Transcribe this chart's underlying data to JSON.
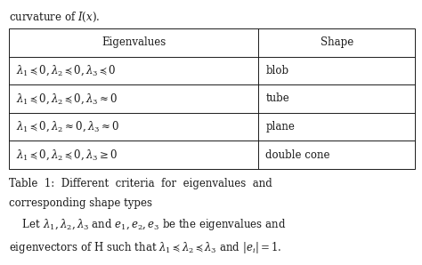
{
  "title_above": "curvature of $I(x)$.",
  "col_headers": [
    "Eigenvalues",
    "Shape"
  ],
  "rows": [
    [
      "$\\lambda_1 \\preceq 0, \\lambda_2 \\preceq 0, \\lambda_3 \\preceq 0$",
      "blob"
    ],
    [
      "$\\lambda_1 \\preceq 0, \\lambda_2 \\preceq 0, \\lambda_3 \\approx 0$",
      "tube"
    ],
    [
      "$\\lambda_1 \\preceq 0, \\lambda_2 \\approx 0, \\lambda_3 \\approx 0$",
      "plane"
    ],
    [
      "$\\lambda_1 \\preceq 0, \\lambda_2 \\preceq 0, \\lambda_3 \\geq 0$",
      "double cone"
    ]
  ],
  "caption_line1": "Table  1:  Different  criteria  for  eigenvalues  and",
  "caption_line2": "corresponding shape types",
  "bottom_line1": "    Let $\\lambda_1, \\lambda_2, \\lambda_3$ and $e_1, e_2, e_3$ be the eigenvalues and",
  "bottom_line2": "eigenvectors of H such that $\\lambda_1 \\preceq \\lambda_2 \\preceq \\lambda_3$ and $|e_i| = 1$.",
  "bg_color": "#ffffff",
  "text_color": "#1a1a1a",
  "border_color": "#1a1a1a",
  "fig_width": 4.74,
  "fig_height": 2.98,
  "dpi": 100
}
